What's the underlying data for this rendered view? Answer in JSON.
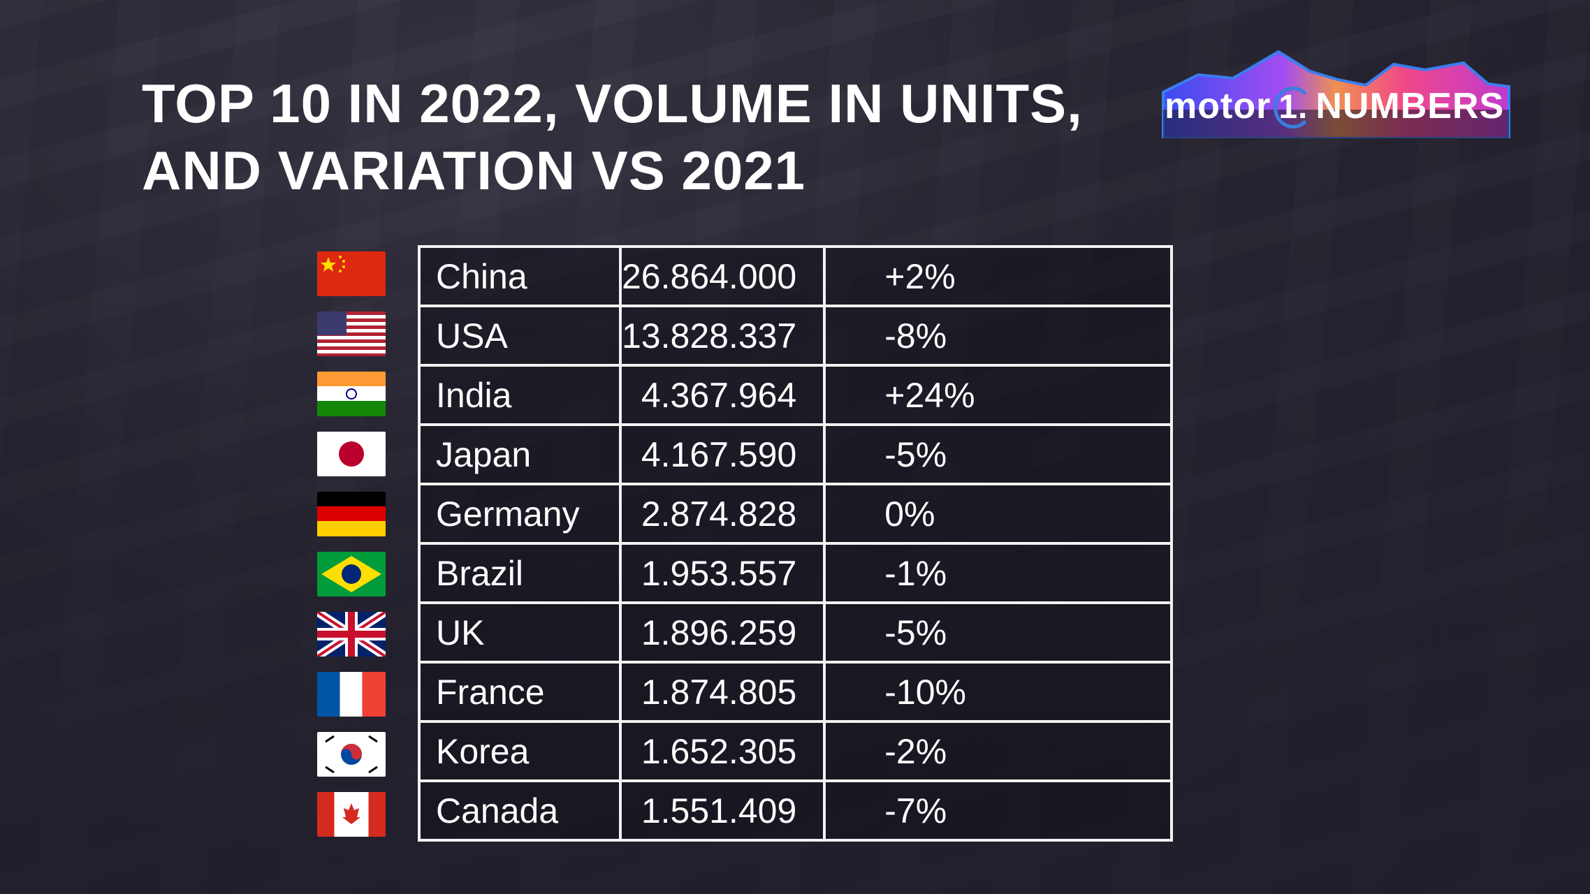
{
  "title": {
    "line1": "TOP 10 IN 2022, VOLUME IN UNITS,",
    "line2": "AND VARIATION VS 2021"
  },
  "logo": {
    "text_left": "motor",
    "text_one": "1.",
    "text_right": "NUMBERS",
    "colors": [
      "#3a4cf0",
      "#a24df0",
      "#f0488a",
      "#f09050"
    ]
  },
  "rows": [
    {
      "flag": "china-flag",
      "country": "China",
      "volume": "26.864.000",
      "variation": "+2%"
    },
    {
      "flag": "usa-flag",
      "country": "USA",
      "volume": "13.828.337",
      "variation": "-8%"
    },
    {
      "flag": "india-flag",
      "country": "India",
      "volume": "4.367.964",
      "variation": "+24%"
    },
    {
      "flag": "japan-flag",
      "country": "Japan",
      "volume": "4.167.590",
      "variation": "-5%"
    },
    {
      "flag": "germany-flag",
      "country": "Germany",
      "volume": "2.874.828",
      "variation": "0%"
    },
    {
      "flag": "brazil-flag",
      "country": "Brazil",
      "volume": "1.953.557",
      "variation": "-1%"
    },
    {
      "flag": "uk-flag",
      "country": "UK",
      "volume": "1.896.259",
      "variation": "-5%"
    },
    {
      "flag": "france-flag",
      "country": "France",
      "volume": "1.874.805",
      "variation": "-10%"
    },
    {
      "flag": "korea-flag",
      "country": "Korea",
      "volume": "1.652.305",
      "variation": "-2%"
    },
    {
      "flag": "canada-flag",
      "country": "Canada",
      "volume": "1.551.409",
      "variation": "-7%"
    }
  ]
}
